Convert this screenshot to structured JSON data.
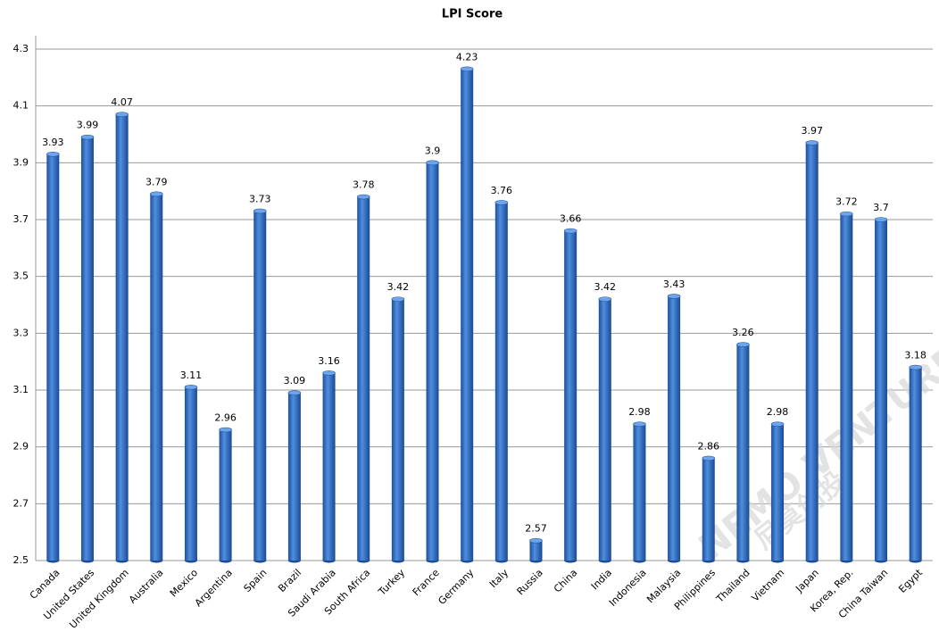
{
  "chart_data": {
    "type": "bar",
    "title": "LPI Score",
    "categories": [
      "Canada",
      "United States",
      "United Kingdom",
      "Australia",
      "Mexico",
      "Argentina",
      "Spain",
      "Brazil",
      "Saudi Arabia",
      "South Africa",
      "Turkey",
      "France",
      "Germany",
      "Italy",
      "Russia",
      "China",
      "India",
      "Indonesia",
      "Malaysia",
      "Philippines",
      "Thailand",
      "Vietnam",
      "Japan",
      "Korea, Rep.",
      "China Taiwan",
      "Egypt"
    ],
    "values": [
      3.93,
      3.99,
      4.07,
      3.79,
      3.11,
      2.96,
      3.73,
      3.09,
      3.16,
      3.78,
      3.42,
      3.9,
      4.23,
      3.76,
      2.57,
      3.66,
      3.42,
      2.98,
      3.43,
      2.86,
      3.26,
      2.98,
      3.97,
      3.72,
      3.7,
      3.18
    ],
    "color": "#2e6bc4",
    "ylim": [
      2.5,
      4.3
    ],
    "yticks": [
      2.5,
      2.7,
      2.9,
      3.1,
      3.3,
      3.5,
      3.7,
      3.9,
      4.1,
      4.3
    ],
    "grid": true,
    "watermark": [
      "NEMO VENTURES",
      "尼莫创投"
    ]
  }
}
